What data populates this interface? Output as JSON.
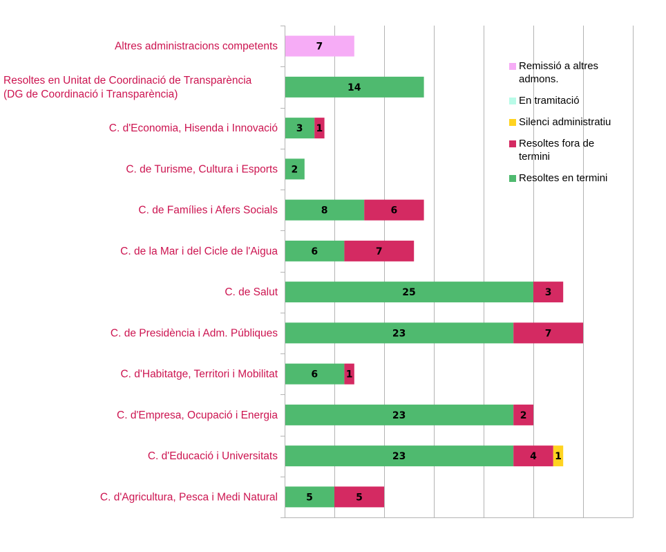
{
  "chart_data": {
    "type": "bar",
    "orientation": "horizontal",
    "stacked": true,
    "title": "",
    "xlabel": "",
    "ylabel": "",
    "xlim": [
      0,
      35
    ],
    "x_grid_step": 5,
    "grid": true,
    "legend_placement": "top-right",
    "categories": [
      [
        "Altres  administracions competents"
      ],
      [
        "Resoltes en Unitat de Coordinació de Transparència",
        "(DG de Coordinació i Transparència)"
      ],
      [
        "C. d'Economia, Hisenda i Innovació"
      ],
      [
        "C. de Turisme, Cultura i Esports"
      ],
      [
        "C. de Famílies i Afers Socials"
      ],
      [
        "C. de la Mar i del Cicle de l'Aigua"
      ],
      [
        "C. de Salut"
      ],
      [
        "C. de Presidència i Adm. Públiques"
      ],
      [
        "C. d'Habitatge, Territori i Mobilitat"
      ],
      [
        "C. d'Empresa, Ocupació i Energia"
      ],
      [
        "C. d'Educació i Universitats"
      ],
      [
        "C. d'Agricultura, Pesca i Medi Natural"
      ]
    ],
    "series": [
      {
        "name": "Resoltes en termini",
        "color": "#4fba6f",
        "values": [
          0,
          14,
          3,
          2,
          8,
          6,
          25,
          23,
          6,
          23,
          23,
          5
        ]
      },
      {
        "name": "Resoltes fora de termini",
        "color": "#d42a62",
        "values": [
          0,
          0,
          1,
          0,
          6,
          7,
          3,
          7,
          1,
          2,
          4,
          5
        ]
      },
      {
        "name": "Silenci administratiu",
        "color": "#ffd320",
        "values": [
          0,
          0,
          0,
          0,
          0,
          0,
          0,
          0,
          0,
          0,
          1,
          0
        ]
      },
      {
        "name": "En tramitació",
        "color": "#b9fbe8",
        "values": [
          0,
          0,
          0,
          0,
          0,
          0,
          0,
          0,
          0,
          0,
          0,
          0
        ]
      },
      {
        "name": "Remissió a altres admons.",
        "color": "#f6acf6",
        "values": [
          7,
          0,
          0,
          0,
          0,
          0,
          0,
          0,
          0,
          0,
          0,
          0
        ]
      }
    ],
    "legend_order": [
      4,
      3,
      2,
      1,
      0
    ],
    "category_label_color": "#cc1450"
  }
}
